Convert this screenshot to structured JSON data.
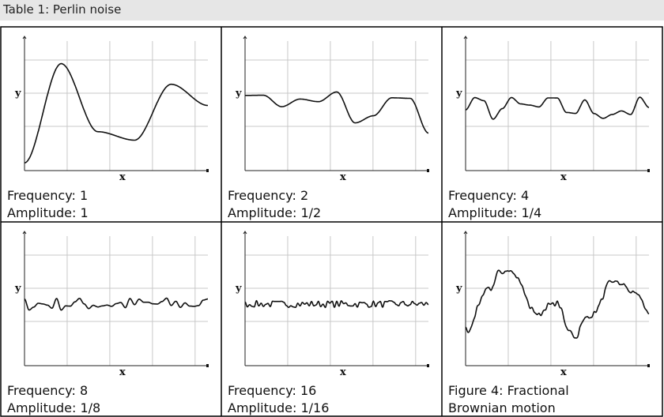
{
  "header": {
    "title": "Table 1: Perlin noise"
  },
  "table": {
    "cells": [
      {
        "y_label": "y",
        "x_label": "x",
        "caption": [
          "Frequency: 1",
          "Amplitude: 1"
        ]
      },
      {
        "y_label": "y",
        "x_label": "x",
        "caption": [
          "Frequency: 2",
          "Amplitude: 1/2"
        ]
      },
      {
        "y_label": "y",
        "x_label": "x",
        "caption": [
          "Frequency: 4",
          "Amplitude: 1/4"
        ]
      },
      {
        "y_label": "y",
        "x_label": "x",
        "caption": [
          "Frequency: 8",
          "Amplitude: 1/8"
        ]
      },
      {
        "y_label": "y",
        "x_label": "x",
        "caption": [
          "Frequency: 16",
          "Amplitude: 1/16"
        ]
      },
      {
        "y_label": "y",
        "x_label": "x",
        "caption": [
          "Figure 4: Fractional",
          "Brownian motion"
        ]
      }
    ]
  }
}
